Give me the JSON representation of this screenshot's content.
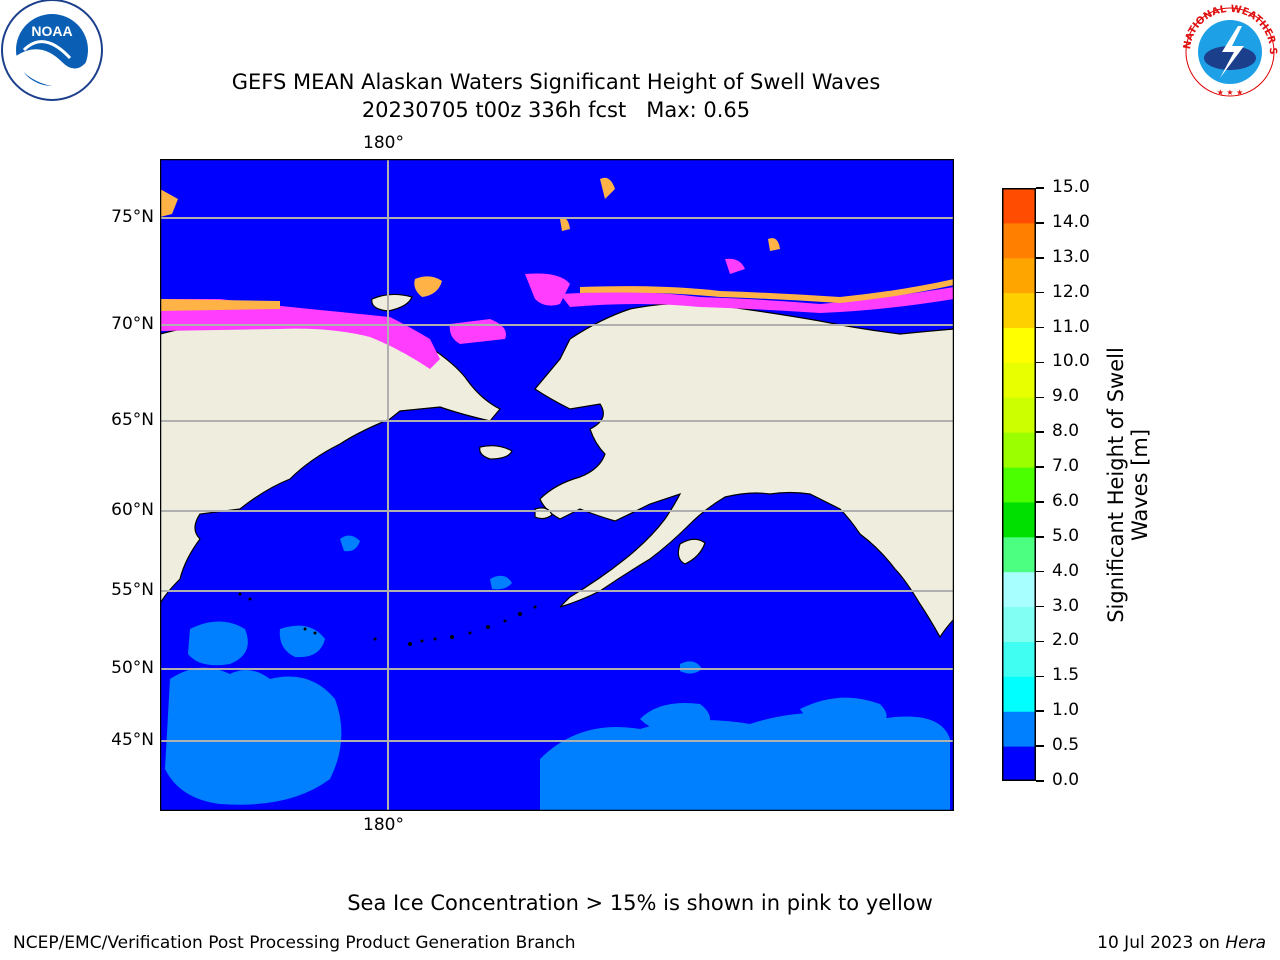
{
  "title_line1": "GEFS MEAN Alaskan Waters Significant Height of Swell Waves",
  "title_line2": "20230705 t00z 336h fcst   Max: 0.65",
  "map": {
    "lat_labels": [
      {
        "text": "75°N",
        "lat": 75
      },
      {
        "text": "70°N",
        "lat": 70
      },
      {
        "text": "65°N",
        "lat": 65
      },
      {
        "text": "60°N",
        "lat": 60
      },
      {
        "text": "55°N",
        "lat": 55
      },
      {
        "text": "50°N",
        "lat": 50
      },
      {
        "text": "45°N",
        "lat": 45
      }
    ],
    "lon_label_top": "180°",
    "lon_label_bottom": "180°",
    "ocean_color": "#0000ff",
    "land_color": "#efedde",
    "ice_colors": [
      "#ff3dff",
      "#ffb347",
      "#ffe84a"
    ]
  },
  "colorbar": {
    "title_line1": "Significant Height of Swell",
    "title_line2": "Waves [m]",
    "ticks": [
      "0.0",
      "0.5",
      "1.0",
      "1.5",
      "2.0",
      "3.0",
      "4.0",
      "5.0",
      "6.0",
      "7.0",
      "8.0",
      "9.0",
      "10.0",
      "11.0",
      "12.0",
      "13.0",
      "14.0",
      "15.0"
    ],
    "colors": [
      "#0000ff",
      "#0080ff",
      "#00ffff",
      "#40fff2",
      "#80fff2",
      "#a8ffff",
      "#4cff80",
      "#00e000",
      "#4cff00",
      "#9cff00",
      "#ccff00",
      "#e8ff00",
      "#ffff00",
      "#ffd000",
      "#ffa500",
      "#ff7f00",
      "#ff4c00",
      "#ff1a00",
      "#ff0000"
    ]
  },
  "ice_note": "Sea Ice Concentration > 15% is shown in pink to yellow",
  "footer_left": "NCEP/EMC/Verification Post Processing Product Generation Branch",
  "footer_date": "10 Jul 2023 on ",
  "footer_host": "Hera",
  "logo_left_text": "NOAA",
  "logo_right_text": "NATIONAL WEATHER SERVICE"
}
